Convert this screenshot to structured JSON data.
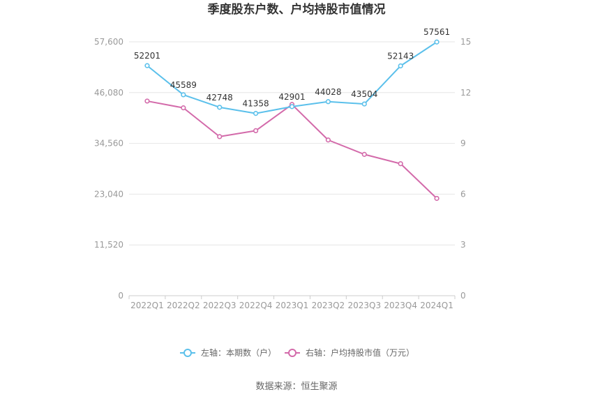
{
  "chart_data": {
    "type": "line",
    "title": "季度股东户数、户均持股市值情况",
    "categories": [
      "2022Q1",
      "2022Q2",
      "2022Q3",
      "2022Q4",
      "2023Q1",
      "2023Q2",
      "2023Q3",
      "2023Q4",
      "2024Q1"
    ],
    "left_axis": {
      "ticks": [
        "0",
        "11,520",
        "23,040",
        "34,560",
        "46,080",
        "57,600"
      ],
      "ylim": [
        0,
        57600
      ]
    },
    "right_axis": {
      "ticks": [
        "0",
        "3",
        "6",
        "9",
        "12",
        "15"
      ],
      "ylim": [
        0,
        15
      ]
    },
    "series": [
      {
        "name": "左轴：本期数（户）",
        "axis": "left",
        "color": "#5bc0eb",
        "values": [
          52201,
          45589,
          42748,
          41358,
          42901,
          44028,
          43504,
          52143,
          57561
        ],
        "labels": [
          "52201",
          "45589",
          "42748",
          "41358",
          "42901",
          "44028",
          "43504",
          "52143",
          "57561"
        ]
      },
      {
        "name": "右轴：户均持股市值（万元）",
        "axis": "right",
        "color": "#d36aaa",
        "values": [
          11.5,
          11.1,
          9.4,
          9.75,
          11.3,
          9.2,
          8.35,
          7.8,
          5.75
        ]
      }
    ],
    "legend_position": "bottom",
    "grid": true
  },
  "source": "数据来源：恒生聚源"
}
